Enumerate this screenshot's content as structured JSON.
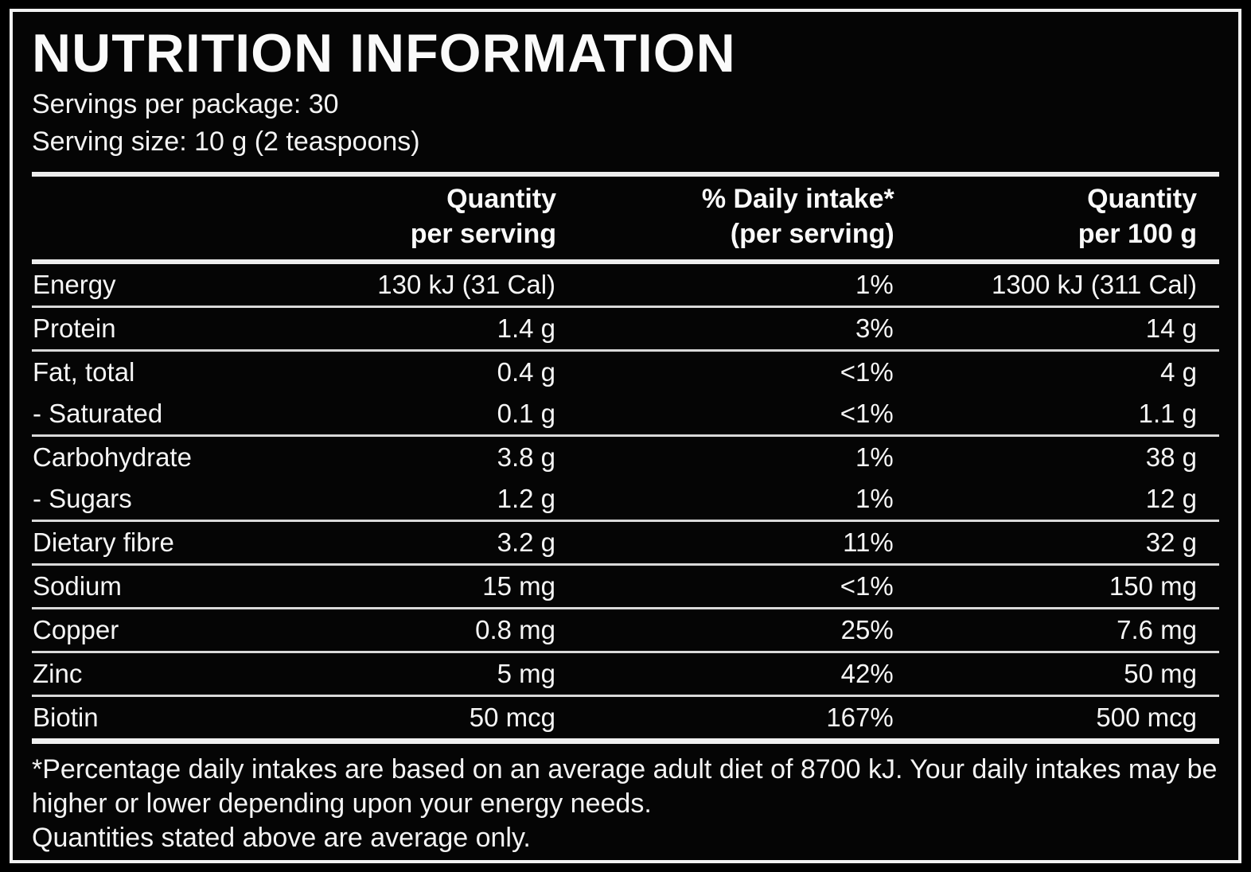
{
  "label": {
    "title": "NUTRITION INFORMATION",
    "servings_per_package": "Servings per package: 30",
    "serving_size": "Serving size: 10 g (2 teaspoons)"
  },
  "table": {
    "columns": [
      {
        "line1": "Quantity",
        "line2": "per serving"
      },
      {
        "line1": "% Daily intake*",
        "line2": "(per serving)"
      },
      {
        "line1": "Quantity",
        "line2": "per 100 g"
      }
    ],
    "rows": [
      {
        "nutrient": "Energy",
        "per_serving": "130 kJ (31 Cal)",
        "daily_intake": "1%",
        "per_100g": "1300 kJ (311 Cal)"
      },
      {
        "nutrient": "Protein",
        "per_serving": "1.4 g",
        "daily_intake": "3%",
        "per_100g": "14 g"
      },
      {
        "nutrient": "Fat, total",
        "per_serving": "0.4 g",
        "daily_intake": "<1%",
        "per_100g": "4 g"
      },
      {
        "nutrient": "- Saturated",
        "per_serving": "0.1 g",
        "daily_intake": "<1%",
        "per_100g": "1.1 g"
      },
      {
        "nutrient": "Carbohydrate",
        "per_serving": "3.8 g",
        "daily_intake": "1%",
        "per_100g": "38 g"
      },
      {
        "nutrient": "- Sugars",
        "per_serving": "1.2 g",
        "daily_intake": "1%",
        "per_100g": "12 g"
      },
      {
        "nutrient": "Dietary fibre",
        "per_serving": "3.2 g",
        "daily_intake": "11%",
        "per_100g": "32 g"
      },
      {
        "nutrient": "Sodium",
        "per_serving": "15 mg",
        "daily_intake": "<1%",
        "per_100g": "150 mg"
      },
      {
        "nutrient": "Copper",
        "per_serving": "0.8 mg",
        "daily_intake": "25%",
        "per_100g": "7.6 mg"
      },
      {
        "nutrient": "Zinc",
        "per_serving": "5 mg",
        "daily_intake": "42%",
        "per_100g": "50 mg"
      },
      {
        "nutrient": "Biotin",
        "per_serving": "50 mcg",
        "daily_intake": "167%",
        "per_100g": "500 mcg"
      }
    ]
  },
  "footnote": {
    "daily_intake_note": "*Percentage daily intakes are based on an average adult diet of 8700 kJ. Your daily intakes may be higher or lower depending upon your energy needs.",
    "average_note": "Quantities stated above are average only."
  },
  "colors": {
    "background": "#050505",
    "text": "#f5f5f5",
    "rule": "#ededed"
  }
}
